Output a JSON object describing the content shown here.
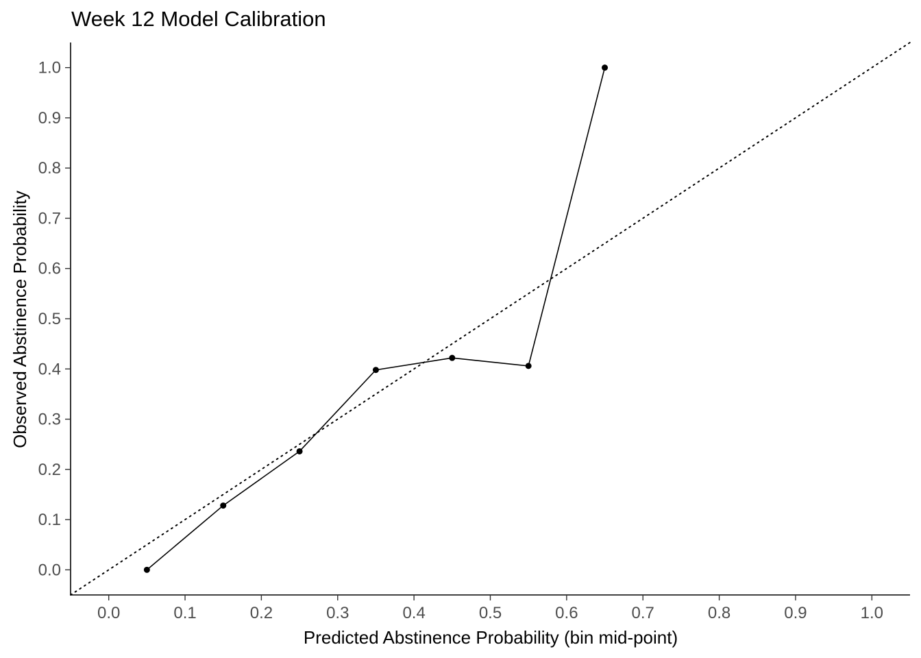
{
  "chart_data": {
    "type": "line",
    "title": "Week 12 Model Calibration",
    "xlabel": "Predicted Abstinence Probability (bin mid-point)",
    "ylabel": "Observed Abstinence Probability",
    "xlim": [
      -0.05,
      1.05
    ],
    "ylim": [
      -0.05,
      1.05
    ],
    "x_ticks": [
      "0.0",
      "0.1",
      "0.2",
      "0.3",
      "0.4",
      "0.5",
      "0.6",
      "0.7",
      "0.8",
      "0.9",
      "1.0"
    ],
    "y_ticks": [
      "0.0",
      "0.1",
      "0.2",
      "0.3",
      "0.4",
      "0.5",
      "0.6",
      "0.7",
      "0.8",
      "0.9",
      "1.0"
    ],
    "grid": false,
    "reference_line": {
      "style": "dotted",
      "slope": 1,
      "intercept": 0
    },
    "series": [
      {
        "x": [
          0.05,
          0.15,
          0.25,
          0.35,
          0.45,
          0.55,
          0.65
        ],
        "y": [
          0.0,
          0.128,
          0.236,
          0.398,
          0.422,
          0.406,
          1.0
        ],
        "color": "#000000",
        "markers": true
      }
    ]
  }
}
